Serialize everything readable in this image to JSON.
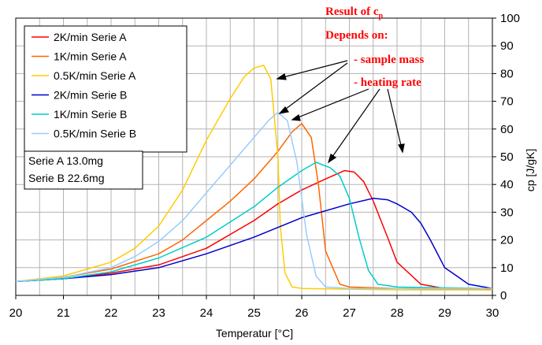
{
  "chart_data": {
    "type": "line",
    "xlabel": "Temperatur [°C]",
    "ylabel": "cp [J/gK]",
    "xlim": [
      20,
      30
    ],
    "ylim": [
      0,
      100
    ],
    "xticks": [
      "20",
      "21",
      "22",
      "23",
      "24",
      "25",
      "26",
      "27",
      "28",
      "29",
      "30"
    ],
    "yticks": [
      "0",
      "10",
      "20",
      "30",
      "40",
      "50",
      "60",
      "70",
      "80",
      "90",
      "100"
    ],
    "grid": true,
    "y_axis_side": "right",
    "legend_placement": "top-left",
    "series": [
      {
        "name": "2K/min Serie A",
        "color": "#ff0000",
        "x": [
          20,
          21,
          22,
          23,
          24,
          25,
          25.5,
          26,
          26.5,
          26.9,
          27.1,
          27.3,
          27.5,
          27.8,
          28,
          28.5,
          29,
          30
        ],
        "y": [
          5,
          6,
          8,
          11,
          17,
          27,
          33,
          38,
          42,
          45,
          44.5,
          41,
          34,
          21,
          12,
          4,
          2.5,
          2
        ]
      },
      {
        "name": "1K/min Serie A",
        "color": "#ff6600",
        "x": [
          20,
          21,
          22,
          23,
          23.5,
          24,
          24.5,
          25,
          25.5,
          25.8,
          26,
          26.2,
          26.35,
          26.5,
          26.8,
          27,
          28,
          30
        ],
        "y": [
          5,
          6.5,
          9.5,
          15,
          20,
          27,
          34,
          42,
          52,
          59,
          62,
          57,
          40,
          16,
          4,
          3,
          2.5,
          2
        ]
      },
      {
        "name": "0.5K/min Serie A",
        "color": "#ffcc00",
        "x": [
          20,
          21,
          22,
          22.5,
          23,
          23.5,
          24,
          24.5,
          24.8,
          25,
          25.2,
          25.35,
          25.5,
          25.55,
          25.65,
          25.8,
          26,
          28,
          30
        ],
        "y": [
          5,
          7,
          12,
          17,
          25,
          38,
          56,
          71,
          79,
          82,
          83,
          78,
          50,
          25,
          8,
          3,
          2.5,
          2,
          2
        ]
      },
      {
        "name": "2K/min Serie B",
        "color": "#0000cc",
        "x": [
          20,
          21,
          22,
          23,
          24,
          25,
          26,
          27,
          27.5,
          27.8,
          28,
          28.3,
          28.5,
          28.7,
          29,
          29.5,
          30
        ],
        "y": [
          5,
          6,
          7.5,
          10,
          15,
          21,
          28,
          33,
          35,
          34.5,
          33,
          30,
          26,
          20,
          10,
          4,
          2.5
        ]
      },
      {
        "name": "1K/min Serie B",
        "color": "#00cccc",
        "x": [
          20,
          21,
          22,
          23,
          24,
          25,
          25.5,
          26,
          26.3,
          26.6,
          26.8,
          27,
          27.2,
          27.4,
          27.6,
          28,
          30
        ],
        "y": [
          5,
          6,
          8.5,
          13.5,
          21,
          32,
          39,
          45,
          48,
          46,
          43,
          35,
          21,
          9,
          4,
          3,
          2.5
        ]
      },
      {
        "name": "0.5K/min Serie B",
        "color": "#99ccff",
        "x": [
          20,
          21,
          22,
          22.5,
          23,
          23.5,
          24,
          24.5,
          25,
          25.3,
          25.5,
          25.7,
          25.9,
          26.1,
          26.3,
          26.5,
          27,
          30
        ],
        "y": [
          5,
          6.5,
          10,
          14,
          19.5,
          27,
          37,
          47,
          57,
          63,
          66,
          63,
          48,
          22,
          7,
          3,
          2.5,
          2.5
        ]
      }
    ],
    "annotations": {
      "title_main": "Result of c",
      "title_sub": "p",
      "line2": "Depends on:",
      "line3": "- sample mass",
      "line4": "- heating rate"
    },
    "info_box": [
      "Serie A 13.0mg",
      "Serie B 22.6mg"
    ]
  }
}
